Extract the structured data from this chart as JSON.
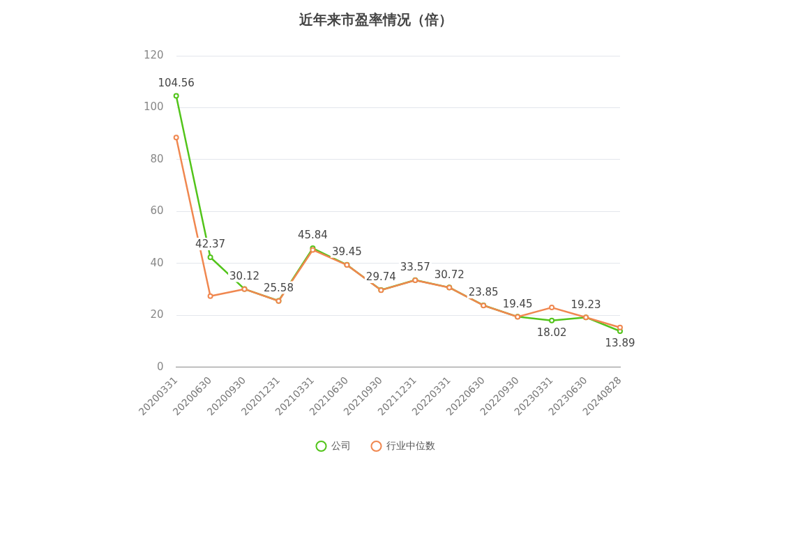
{
  "chart_data": {
    "type": "line",
    "title": "近年来市盈率情况（倍）",
    "categories": [
      "20200331",
      "20200630",
      "20200930",
      "20201231",
      "20210331",
      "20210630",
      "20210930",
      "20211231",
      "20220331",
      "20220630",
      "20220930",
      "20230331",
      "20230630",
      "20240828"
    ],
    "series": [
      {
        "name": "公司",
        "color": "#52c41a",
        "values": [
          104.56,
          42.37,
          30.12,
          25.58,
          45.84,
          39.45,
          29.74,
          33.57,
          30.72,
          23.85,
          19.45,
          18.02,
          19.23,
          13.89
        ],
        "value_labels": [
          "104.56",
          "42.37",
          "30.12",
          "25.58",
          "45.84",
          "39.45",
          "29.74",
          "33.57",
          "30.72",
          "23.85",
          "19.45",
          "18.02",
          "19.23",
          "13.89"
        ]
      },
      {
        "name": "行业中位数",
        "color": "#f0874f",
        "values": [
          88.5,
          27.4,
          30.1,
          25.5,
          45.2,
          39.4,
          29.7,
          33.5,
          30.7,
          23.8,
          19.4,
          23.0,
          19.2,
          15.3
        ]
      }
    ],
    "ylim": [
      0,
      120
    ],
    "yticks": [
      0,
      20,
      40,
      60,
      80,
      100,
      120
    ],
    "grid": "y",
    "legend": "bottom",
    "marker": "circle",
    "line_style": "solid"
  }
}
